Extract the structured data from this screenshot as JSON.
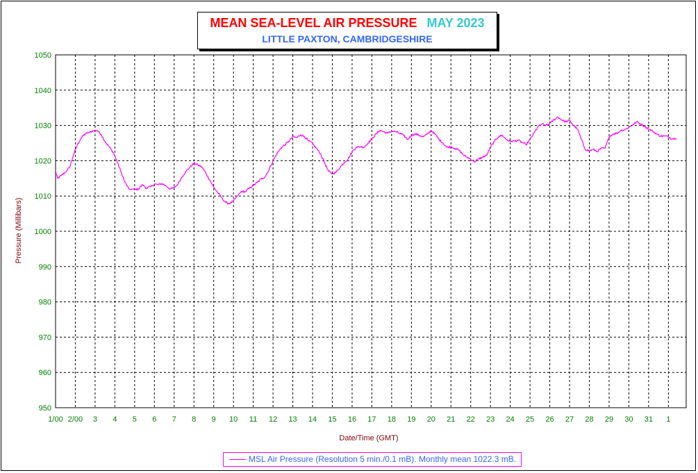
{
  "header": {
    "title": "MEAN SEA-LEVEL AIR PRESSURE",
    "month": "MAY 2023",
    "subtitle": "LITTLE PAXTON, CAMBRIDGESHIRE"
  },
  "legend": {
    "label": "MSL Air Pressure (Resolution 5 min./0.1 mB). Monthly mean 1022.3 mB."
  },
  "colors": {
    "series": "#ff00ff",
    "title": "#ff0000",
    "month": "#33cccc",
    "subtitle": "#3366ff",
    "tick_labels": "#008000",
    "ylabel": "#800000",
    "xlabel": "#800000"
  },
  "chart_data": {
    "type": "line",
    "title": "MEAN SEA-LEVEL AIR PRESSURE",
    "subtitle": "LITTLE PAXTON, CAMBRIDGESHIRE",
    "xlabel": "Date/Time (GMT)",
    "ylabel": "Pressure (Millibars)",
    "ylim": [
      950,
      1050
    ],
    "xlim": [
      1,
      32.9
    ],
    "grid": true,
    "legend_position": "bottom",
    "y_ticks": [
      950,
      960,
      970,
      980,
      990,
      1000,
      1010,
      1020,
      1030,
      1040,
      1050
    ],
    "x_ticks": [
      {
        "x": 1,
        "label": "1/00"
      },
      {
        "x": 2,
        "label": "2/00"
      },
      {
        "x": 3,
        "label": "3"
      },
      {
        "x": 4,
        "label": "4"
      },
      {
        "x": 5,
        "label": "5"
      },
      {
        "x": 6,
        "label": "6"
      },
      {
        "x": 7,
        "label": "7"
      },
      {
        "x": 8,
        "label": "8"
      },
      {
        "x": 9,
        "label": "9"
      },
      {
        "x": 10,
        "label": "10"
      },
      {
        "x": 11,
        "label": "11"
      },
      {
        "x": 12,
        "label": "12"
      },
      {
        "x": 13,
        "label": "13"
      },
      {
        "x": 14,
        "label": "14"
      },
      {
        "x": 15,
        "label": "15"
      },
      {
        "x": 16,
        "label": "16"
      },
      {
        "x": 17,
        "label": "17"
      },
      {
        "x": 18,
        "label": "18"
      },
      {
        "x": 19,
        "label": "19"
      },
      {
        "x": 20,
        "label": "20"
      },
      {
        "x": 21,
        "label": "21"
      },
      {
        "x": 22,
        "label": "22"
      },
      {
        "x": 23,
        "label": "23"
      },
      {
        "x": 24,
        "label": "24"
      },
      {
        "x": 25,
        "label": "25"
      },
      {
        "x": 26,
        "label": "26"
      },
      {
        "x": 27,
        "label": "27"
      },
      {
        "x": 28,
        "label": "28"
      },
      {
        "x": 29,
        "label": "29"
      },
      {
        "x": 30,
        "label": "30"
      },
      {
        "x": 31,
        "label": "31"
      },
      {
        "x": 32,
        "label": "1"
      }
    ],
    "series": [
      {
        "name": "MSL Air Pressure (Resolution 5 min./0.1 mB). Monthly mean 1022.3 mB.",
        "points": [
          [
            1.0,
            1017.0
          ],
          [
            1.1,
            1015.0
          ],
          [
            1.3,
            1015.8
          ],
          [
            1.5,
            1016.8
          ],
          [
            1.7,
            1018.0
          ],
          [
            1.9,
            1021.5
          ],
          [
            2.1,
            1024.5
          ],
          [
            2.3,
            1026.5
          ],
          [
            2.5,
            1027.6
          ],
          [
            2.7,
            1028.0
          ],
          [
            2.9,
            1028.5
          ],
          [
            3.1,
            1028.6
          ],
          [
            3.3,
            1027.5
          ],
          [
            3.5,
            1025.5
          ],
          [
            3.7,
            1024.0
          ],
          [
            3.9,
            1022.5
          ],
          [
            4.1,
            1020.0
          ],
          [
            4.3,
            1017.0
          ],
          [
            4.5,
            1014.0
          ],
          [
            4.7,
            1012.0
          ],
          [
            5.0,
            1011.8
          ],
          [
            5.2,
            1012.0
          ],
          [
            5.4,
            1013.2
          ],
          [
            5.6,
            1012.2
          ],
          [
            5.8,
            1012.6
          ],
          [
            6.0,
            1013.4
          ],
          [
            6.2,
            1013.2
          ],
          [
            6.4,
            1013.5
          ],
          [
            6.6,
            1012.8
          ],
          [
            6.8,
            1012.0
          ],
          [
            7.0,
            1012.3
          ],
          [
            7.2,
            1013.5
          ],
          [
            7.4,
            1015.5
          ],
          [
            7.6,
            1017.0
          ],
          [
            7.8,
            1018.2
          ],
          [
            8.0,
            1019.3
          ],
          [
            8.2,
            1018.8
          ],
          [
            8.4,
            1018.2
          ],
          [
            8.6,
            1016.5
          ],
          [
            8.8,
            1014.5
          ],
          [
            9.0,
            1012.5
          ],
          [
            9.2,
            1011.0
          ],
          [
            9.4,
            1009.5
          ],
          [
            9.6,
            1008.2
          ],
          [
            9.8,
            1007.8
          ],
          [
            10.0,
            1008.6
          ],
          [
            10.2,
            1010.0
          ],
          [
            10.4,
            1011.3
          ],
          [
            10.6,
            1011.2
          ],
          [
            10.8,
            1012.2
          ],
          [
            11.0,
            1013.0
          ],
          [
            11.2,
            1013.8
          ],
          [
            11.4,
            1014.8
          ],
          [
            11.6,
            1015.5
          ],
          [
            11.8,
            1017.5
          ],
          [
            12.0,
            1020.0
          ],
          [
            12.2,
            1022.0
          ],
          [
            12.4,
            1023.6
          ],
          [
            12.6,
            1024.5
          ],
          [
            12.8,
            1025.5
          ],
          [
            13.0,
            1026.8
          ],
          [
            13.2,
            1026.5
          ],
          [
            13.4,
            1027.4
          ],
          [
            13.6,
            1026.8
          ],
          [
            13.8,
            1025.6
          ],
          [
            14.0,
            1024.8
          ],
          [
            14.2,
            1023.5
          ],
          [
            14.4,
            1022.0
          ],
          [
            14.6,
            1019.5
          ],
          [
            14.8,
            1017.0
          ],
          [
            15.0,
            1016.3
          ],
          [
            15.2,
            1016.8
          ],
          [
            15.4,
            1018.2
          ],
          [
            15.6,
            1019.5
          ],
          [
            15.8,
            1020.5
          ],
          [
            16.0,
            1022.5
          ],
          [
            16.2,
            1023.8
          ],
          [
            16.4,
            1024.0
          ],
          [
            16.6,
            1023.8
          ],
          [
            16.8,
            1025.0
          ],
          [
            17.0,
            1026.2
          ],
          [
            17.2,
            1027.5
          ],
          [
            17.4,
            1028.6
          ],
          [
            17.6,
            1028.2
          ],
          [
            17.8,
            1027.8
          ],
          [
            18.0,
            1028.4
          ],
          [
            18.2,
            1028.2
          ],
          [
            18.4,
            1027.8
          ],
          [
            18.6,
            1027.2
          ],
          [
            18.8,
            1026.0
          ],
          [
            19.0,
            1027.2
          ],
          [
            19.2,
            1027.6
          ],
          [
            19.4,
            1027.2
          ],
          [
            19.6,
            1026.8
          ],
          [
            19.8,
            1027.5
          ],
          [
            20.0,
            1028.6
          ],
          [
            20.2,
            1027.5
          ],
          [
            20.4,
            1026.0
          ],
          [
            20.6,
            1025.0
          ],
          [
            20.8,
            1023.8
          ],
          [
            21.0,
            1024.0
          ],
          [
            21.2,
            1023.5
          ],
          [
            21.4,
            1023.0
          ],
          [
            21.6,
            1021.8
          ],
          [
            21.8,
            1021.0
          ],
          [
            22.0,
            1020.5
          ],
          [
            22.2,
            1019.7
          ],
          [
            22.4,
            1020.5
          ],
          [
            22.6,
            1021.0
          ],
          [
            22.8,
            1021.5
          ],
          [
            23.0,
            1023.8
          ],
          [
            23.2,
            1025.5
          ],
          [
            23.4,
            1026.8
          ],
          [
            23.6,
            1027.2
          ],
          [
            23.8,
            1026.0
          ],
          [
            24.0,
            1025.5
          ],
          [
            24.2,
            1025.6
          ],
          [
            24.4,
            1025.8
          ],
          [
            24.6,
            1025.2
          ],
          [
            24.8,
            1024.5
          ],
          [
            25.0,
            1026.0
          ],
          [
            25.2,
            1027.8
          ],
          [
            25.4,
            1029.6
          ],
          [
            25.6,
            1030.4
          ],
          [
            25.8,
            1030.0
          ],
          [
            26.0,
            1030.5
          ],
          [
            26.2,
            1031.5
          ],
          [
            26.4,
            1032.4
          ],
          [
            26.6,
            1031.6
          ],
          [
            26.8,
            1031.0
          ],
          [
            27.0,
            1031.4
          ],
          [
            27.2,
            1030.0
          ],
          [
            27.4,
            1029.0
          ],
          [
            27.6,
            1026.0
          ],
          [
            27.8,
            1023.2
          ],
          [
            28.0,
            1022.8
          ],
          [
            28.2,
            1023.2
          ],
          [
            28.4,
            1022.6
          ],
          [
            28.6,
            1023.5
          ],
          [
            28.8,
            1023.5
          ],
          [
            29.0,
            1026.8
          ],
          [
            29.2,
            1027.6
          ],
          [
            29.4,
            1027.8
          ],
          [
            29.6,
            1028.6
          ],
          [
            29.8,
            1028.8
          ],
          [
            30.0,
            1029.5
          ],
          [
            30.2,
            1030.2
          ],
          [
            30.4,
            1031.0
          ],
          [
            30.6,
            1030.4
          ],
          [
            30.8,
            1029.8
          ],
          [
            31.0,
            1029.0
          ],
          [
            31.2,
            1028.4
          ],
          [
            31.4,
            1027.6
          ],
          [
            31.6,
            1027.0
          ],
          [
            31.8,
            1027.0
          ],
          [
            32.0,
            1026.8
          ],
          [
            32.2,
            1026.2
          ],
          [
            32.4,
            1026.4
          ]
        ]
      }
    ]
  }
}
